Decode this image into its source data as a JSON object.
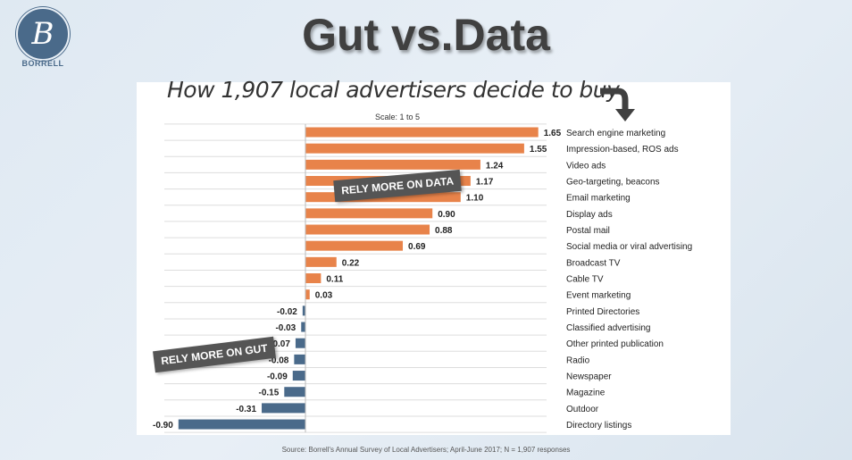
{
  "logo": {
    "text": "BORRELL"
  },
  "title": "Gut vs.Data",
  "subtitle": "How 1,907 local advertisers decide to buy",
  "source": "Source: Borrell's Annual Survey of Local Advertisers; April-June 2017; N = 1,907 responses",
  "stamps": {
    "data": "RELY MORE ON DATA",
    "gut": "RELY MORE ON GUT"
  },
  "chart_data": {
    "type": "bar",
    "orientation": "horizontal",
    "title": "How 1,907 local advertisers decide to buy",
    "scale_label": "Scale:  1 to 5",
    "categories": [
      "Search engine marketing",
      "Impression-based, ROS  ads",
      "Video ads",
      "Geo-targeting, beacons",
      "Email marketing",
      "Display ads",
      "Postal mail",
      "Social media or viral advertising",
      "Broadcast TV",
      "Cable TV",
      "Event marketing",
      "Printed Directories",
      "Classified advertising",
      "Other printed publication",
      "Radio",
      "Newspaper",
      "Magazine",
      "Outdoor",
      "Directory listings"
    ],
    "values": [
      1.65,
      1.55,
      1.24,
      1.17,
      1.1,
      0.9,
      0.88,
      0.69,
      0.22,
      0.11,
      0.03,
      -0.02,
      -0.03,
      -0.07,
      -0.08,
      -0.09,
      -0.15,
      -0.31,
      -0.9
    ],
    "labels": [
      "1.65",
      "1.55",
      "1.24",
      "1.17",
      "1.10",
      "0.90",
      "0.88",
      "0.69",
      "0.22",
      "0.11",
      "0.03",
      "-0.02",
      "-0.03",
      "-0.07",
      "-0.08",
      "-0.09",
      "-0.15",
      "-0.31",
      "-0.90"
    ],
    "colors": {
      "positive": "#e8834a",
      "negative": "#4a6a8a"
    }
  }
}
